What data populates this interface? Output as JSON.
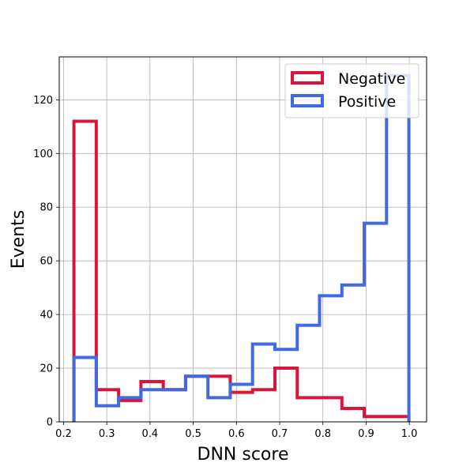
{
  "chart_data": {
    "type": "histogram",
    "title": "",
    "xlabel": "DNN score",
    "ylabel": "Events",
    "xlim": [
      0.19,
      1.04
    ],
    "ylim": [
      0,
      136
    ],
    "grid": true,
    "legend_position": "top-right",
    "x_ticks": [
      0.2,
      0.3,
      0.4,
      0.5,
      0.6,
      0.7,
      0.8,
      0.9,
      1.0
    ],
    "x_tick_labels": [
      "0.2",
      "0.3",
      "0.4",
      "0.5",
      "0.6",
      "0.7",
      "0.8",
      "0.9",
      "1.0"
    ],
    "y_ticks": [
      0,
      20,
      40,
      60,
      80,
      100,
      120
    ],
    "y_tick_labels": [
      "0",
      "20",
      "40",
      "60",
      "80",
      "100",
      "120"
    ],
    "bin_edges": [
      0.224,
      0.2757,
      0.3273,
      0.379,
      0.4307,
      0.4823,
      0.534,
      0.5857,
      0.6373,
      0.689,
      0.7407,
      0.7923,
      0.844,
      0.8957,
      0.9473,
      0.999
    ],
    "series": [
      {
        "name": "Negative",
        "color": "#dc143c",
        "values": [
          112,
          12,
          8,
          15,
          12,
          17,
          17,
          11,
          12,
          20,
          9,
          9,
          5,
          2,
          2
        ]
      },
      {
        "name": "Positive",
        "color": "#4169e1",
        "values": [
          24,
          6,
          9,
          12,
          12,
          17,
          9,
          14,
          29,
          27,
          36,
          47,
          51,
          74,
          129
        ]
      }
    ]
  }
}
